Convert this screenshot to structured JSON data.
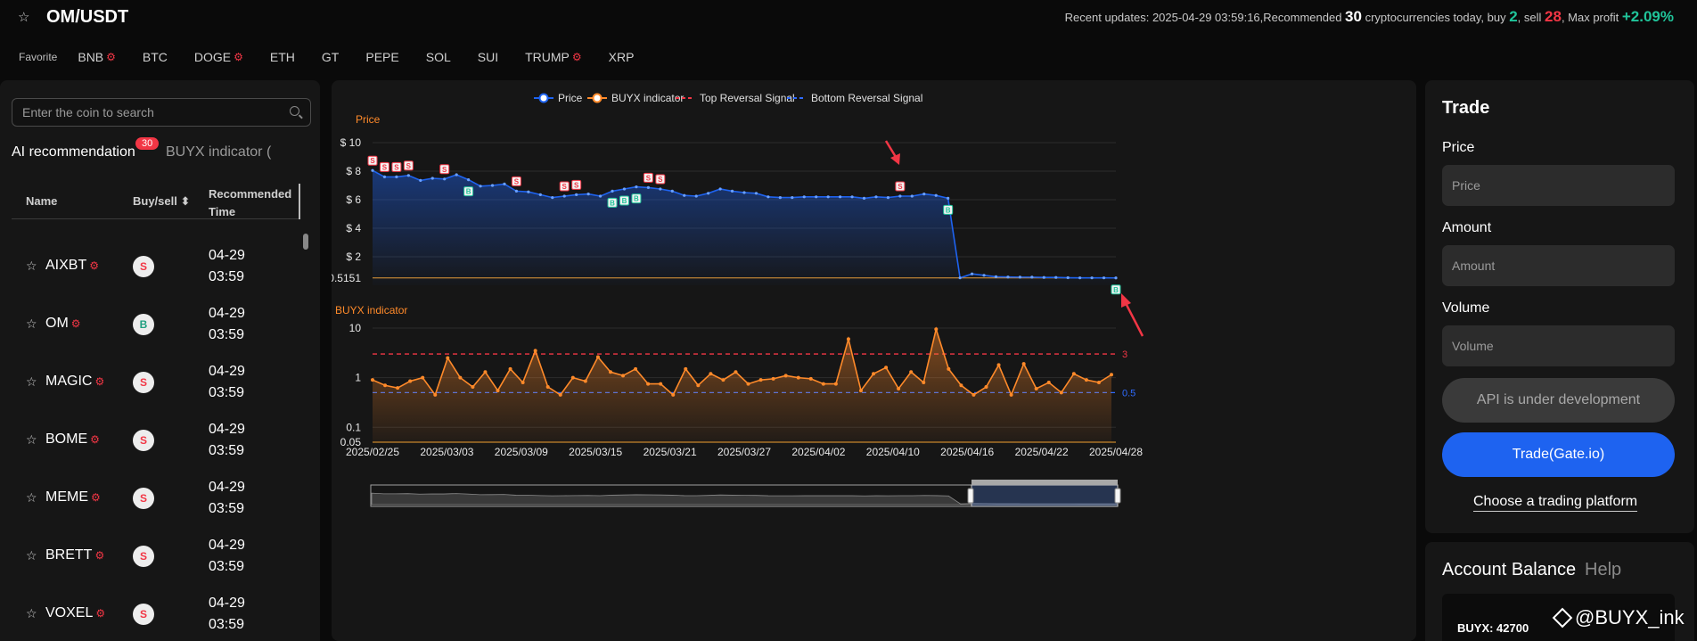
{
  "header": {
    "pair": "OM/USDT",
    "updates_prefix": "Recent updates: 2025-04-29 03:59:16,Recommended ",
    "recommended_count": "30",
    "updates_mid": " cryptocurrencies today, buy ",
    "buy_count": "2",
    "sell_text": ", sell ",
    "sell_count": "28",
    "profit_text": ", Max profit ",
    "max_profit": "+2.09%"
  },
  "favorites": {
    "label": "Favorite",
    "coins": [
      {
        "name": "BNB",
        "hot": true
      },
      {
        "name": "BTC",
        "hot": false
      },
      {
        "name": "DOGE",
        "hot": true
      },
      {
        "name": "ETH",
        "hot": false
      },
      {
        "name": "GT",
        "hot": false
      },
      {
        "name": "PEPE",
        "hot": false
      },
      {
        "name": "SOL",
        "hot": false
      },
      {
        "name": "SUI",
        "hot": false
      },
      {
        "name": "TRUMP",
        "hot": true
      },
      {
        "name": "XRP",
        "hot": false
      }
    ]
  },
  "left": {
    "search_placeholder": "Enter the coin to search",
    "tab_ai": "AI recommendation",
    "tab_badge": "30",
    "tab_buyx": "BUYX indicator (",
    "col_name": "Name",
    "col_buysell": "Buy/sell ⬍",
    "col_time": "Recommended Time",
    "rows": [
      {
        "name": "AIXBT",
        "signal": "S",
        "date": "04-29",
        "time": "03:59"
      },
      {
        "name": "OM",
        "signal": "B",
        "date": "04-29",
        "time": "03:59"
      },
      {
        "name": "MAGIC",
        "signal": "S",
        "date": "04-29",
        "time": "03:59"
      },
      {
        "name": "BOME",
        "signal": "S",
        "date": "04-29",
        "time": "03:59"
      },
      {
        "name": "MEME",
        "signal": "S",
        "date": "04-29",
        "time": "03:59"
      },
      {
        "name": "BRETT",
        "signal": "S",
        "date": "04-29",
        "time": "03:59"
      },
      {
        "name": "VOXEL",
        "signal": "S",
        "date": "04-29",
        "time": "03:59"
      }
    ]
  },
  "chart_data": [
    {
      "type": "line",
      "legend": [
        "Price",
        "BUYX indicator",
        "Top Reversal Signal",
        "Bottom Reversal Signal"
      ],
      "title": "Price",
      "y_ticks": [
        "$ 10",
        "$ 8",
        "$ 6",
        "$ 4",
        "$ 2",
        "$ 0.5151"
      ],
      "ylim": [
        0,
        10
      ],
      "current_price": 0.5151,
      "x_ticks": [
        "2025/02/25",
        "2025/03/03",
        "2025/03/09",
        "2025/03/15",
        "2025/03/21",
        "2025/03/27",
        "2025/04/02",
        "2025/04/10",
        "2025/04/16",
        "2025/04/22",
        "2025/04/28"
      ],
      "values": [
        8.05,
        7.6,
        7.6,
        7.7,
        7.35,
        7.5,
        7.45,
        7.75,
        7.4,
        6.95,
        7.0,
        7.1,
        6.6,
        6.55,
        6.35,
        6.15,
        6.25,
        6.35,
        6.4,
        6.25,
        6.6,
        6.75,
        6.9,
        6.85,
        6.75,
        6.6,
        6.3,
        6.25,
        6.45,
        6.75,
        6.6,
        6.5,
        6.45,
        6.2,
        6.15,
        6.15,
        6.2,
        6.2,
        6.2,
        6.2,
        6.2,
        6.1,
        6.2,
        6.15,
        6.25,
        6.25,
        6.4,
        6.3,
        6.1,
        0.52,
        0.8,
        0.7,
        0.6,
        0.58,
        0.57,
        0.57,
        0.55,
        0.55,
        0.53,
        0.52,
        0.52,
        0.52,
        0.515
      ],
      "sell_marks": [
        0,
        1,
        2,
        3,
        6,
        12,
        16,
        17,
        23,
        24,
        44
      ],
      "buy_marks": [
        8,
        20,
        21,
        22,
        48,
        62
      ]
    },
    {
      "type": "area",
      "title": "BUYX indicator",
      "y_scale": "log",
      "y_ticks": [
        "10",
        "1",
        "0.1",
        "0.05"
      ],
      "ylim": [
        0.05,
        10
      ],
      "top_reversal": 3,
      "bottom_reversal": 0.5,
      "top_label": "3",
      "bottom_label": "0.5",
      "values": [
        0.9,
        0.7,
        0.62,
        0.85,
        1.0,
        0.45,
        2.5,
        1.0,
        0.65,
        1.3,
        0.55,
        1.5,
        0.8,
        3.5,
        0.65,
        0.45,
        1.0,
        0.85,
        2.6,
        1.3,
        1.1,
        1.5,
        0.75,
        0.75,
        0.45,
        1.5,
        0.7,
        1.2,
        0.9,
        1.3,
        0.75,
        0.9,
        0.95,
        1.1,
        1.0,
        0.95,
        0.75,
        0.75,
        6.0,
        0.55,
        1.2,
        1.6,
        0.6,
        1.3,
        0.8,
        9.5,
        1.5,
        0.7,
        0.45,
        0.65,
        1.8,
        0.45,
        1.9,
        0.6,
        0.8,
        0.5,
        1.2,
        0.9,
        0.8,
        1.15
      ]
    }
  ],
  "trade": {
    "title": "Trade",
    "price_label": "Price",
    "price_placeholder": "Price",
    "amount_label": "Amount",
    "amount_placeholder": "Amount",
    "volume_label": "Volume",
    "volume_placeholder": "Volume",
    "api_button": "API is under development",
    "trade_button": "Trade(Gate.io)",
    "choose_link": "Choose a trading platform"
  },
  "account": {
    "title": "Account Balance",
    "help": "Help",
    "balance": "BUYX: 42700"
  },
  "watermark": "@BUYX_ink",
  "colors": {
    "price": "#1e63f0",
    "buyx": "#ff8a2a",
    "top": "#f23645",
    "bottom": "#2f6bff",
    "buy": "#20c49a",
    "sell": "#f23645"
  }
}
